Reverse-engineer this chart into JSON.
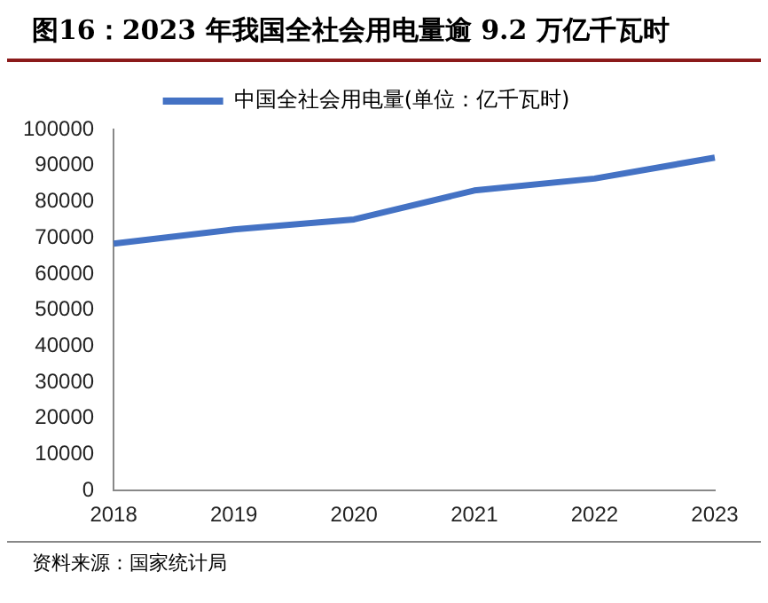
{
  "chart_data": {
    "type": "line",
    "title": "图16：2023 年我国全社会用电量逾 9.2 万亿千瓦时",
    "categories": [
      "2018",
      "2019",
      "2020",
      "2021",
      "2022",
      "2023"
    ],
    "series": [
      {
        "name": "中国全社会用电量(单位：亿千瓦时)",
        "color": "#4472c4",
        "values": [
          68400,
          72300,
          75100,
          83100,
          86400,
          92200
        ]
      }
    ],
    "ylim": [
      0,
      100000
    ],
    "yticks": [
      0,
      10000,
      20000,
      30000,
      40000,
      50000,
      60000,
      70000,
      80000,
      90000,
      100000
    ],
    "grid": false,
    "legend": "top",
    "marker": "none",
    "line_style": "solid",
    "annotations": [
      "资料来源：国家统计局"
    ]
  }
}
